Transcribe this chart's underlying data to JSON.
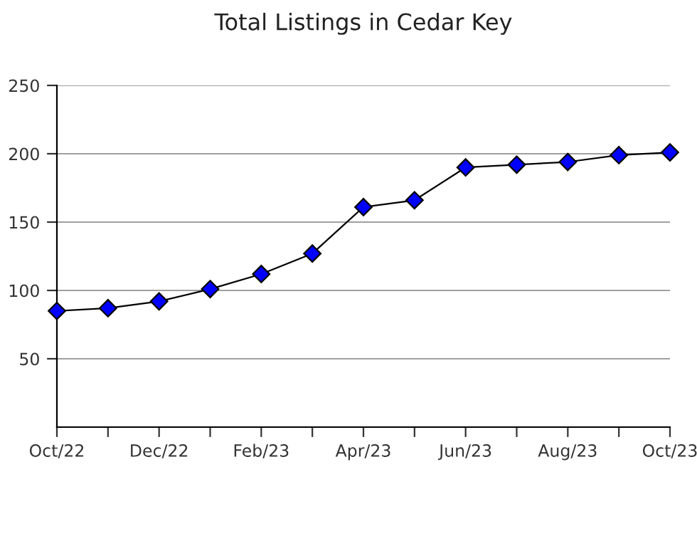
{
  "chart_data": {
    "type": "line",
    "title": "Total Listings in Cedar Key",
    "categories": [
      "Oct/22",
      null,
      "Dec/22",
      null,
      "Feb/23",
      null,
      "Apr/23",
      null,
      "Jun/23",
      null,
      "Aug/23",
      null,
      "Oct/23"
    ],
    "series": [
      {
        "color": "#0000ff",
        "values": [
          85,
          87,
          92,
          101,
          112,
          127,
          161,
          166,
          190,
          192,
          194,
          199,
          201
        ]
      }
    ],
    "ylim": [
      0,
      250
    ],
    "yticks": [
      50,
      100,
      150,
      200,
      250
    ],
    "grid": "y",
    "marker": "diamond",
    "line_style": "solid",
    "legend": false
  }
}
